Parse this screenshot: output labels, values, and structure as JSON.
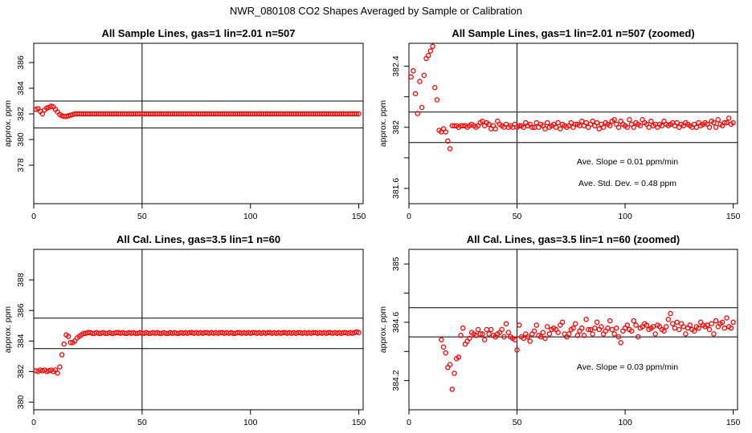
{
  "main_title": "NWR_080108  CO2 Shapes Averaged by Sample or Calibration",
  "colors": {
    "points": "#ff0000",
    "lines": "#000000"
  },
  "chart_data": [
    {
      "type": "scatter",
      "title": "All Sample Lines, gas=1 lin=2.01 n=507",
      "xlabel": "",
      "ylabel": "approx. ppm",
      "xlim": [
        0,
        152
      ],
      "ylim": [
        375,
        387.5
      ],
      "xticks": [
        0,
        50,
        100,
        150
      ],
      "yticks": [
        378,
        380,
        382,
        384,
        386
      ],
      "hlines": [
        380.9,
        383.0
      ],
      "vline": 50,
      "grid": false,
      "annotations": [],
      "x": [
        1,
        2,
        3,
        4,
        5,
        6,
        7,
        8,
        9,
        10,
        11,
        12,
        13,
        14,
        15,
        16,
        17,
        18,
        19,
        20,
        21,
        22,
        23,
        24,
        25,
        26,
        27,
        28,
        29,
        30,
        31,
        32,
        33,
        34,
        35,
        36,
        37,
        38,
        39,
        40,
        41,
        42,
        43,
        44,
        45,
        46,
        47,
        48,
        49,
        50,
        51,
        52,
        53,
        54,
        55,
        56,
        57,
        58,
        59,
        60,
        61,
        62,
        63,
        64,
        65,
        66,
        67,
        68,
        69,
        70,
        71,
        72,
        73,
        74,
        75,
        76,
        77,
        78,
        79,
        80,
        81,
        82,
        83,
        84,
        85,
        86,
        87,
        88,
        89,
        90,
        91,
        92,
        93,
        94,
        95,
        96,
        97,
        98,
        99,
        100,
        101,
        102,
        103,
        104,
        105,
        106,
        107,
        108,
        109,
        110,
        111,
        112,
        113,
        114,
        115,
        116,
        117,
        118,
        119,
        120,
        121,
        122,
        123,
        124,
        125,
        126,
        127,
        128,
        129,
        130,
        131,
        132,
        133,
        134,
        135,
        136,
        137,
        138,
        139,
        140,
        141,
        142,
        143,
        144,
        145,
        146,
        147,
        148,
        149,
        150
      ],
      "y": [
        382.35,
        382.4,
        382.2,
        382.0,
        382.3,
        382.45,
        382.5,
        382.6,
        382.55,
        382.35,
        382.15,
        381.95,
        381.85,
        381.8,
        381.8,
        381.85,
        381.9,
        381.95,
        382.0,
        382.0,
        382.0,
        382.0,
        382.0,
        382.0,
        382.0,
        382.0,
        382.0,
        382.0,
        382.0,
        382.0,
        382.0,
        382.0,
        382.0,
        382.0,
        382.0,
        382.0,
        382.0,
        382.0,
        382.0,
        382.0,
        382.0,
        382.0,
        382.0,
        382.0,
        382.0,
        382.0,
        382.0,
        382.0,
        382.0,
        382.0,
        382.0,
        382.0,
        382.0,
        382.0,
        382.0,
        382.0,
        382.0,
        382.0,
        382.0,
        382.0,
        382.0,
        382.0,
        382.0,
        382.0,
        382.0,
        382.0,
        382.0,
        382.0,
        382.0,
        382.0,
        382.0,
        382.0,
        382.0,
        382.0,
        382.0,
        382.0,
        382.0,
        382.0,
        382.0,
        382.0,
        382.0,
        382.0,
        382.0,
        382.0,
        382.0,
        382.0,
        382.0,
        382.0,
        382.0,
        382.0,
        382.0,
        382.0,
        382.0,
        382.0,
        382.0,
        382.0,
        382.0,
        382.0,
        382.0,
        382.0,
        382.0,
        382.0,
        382.0,
        382.0,
        382.0,
        382.0,
        382.0,
        382.0,
        382.0,
        382.0,
        382.0,
        382.0,
        382.0,
        382.0,
        382.0,
        382.0,
        382.0,
        382.0,
        382.0,
        382.0,
        382.0,
        382.0,
        382.0,
        382.0,
        382.0,
        382.0,
        382.0,
        382.0,
        382.0,
        382.0,
        382.0,
        382.0,
        382.0,
        382.0,
        382.0,
        382.0,
        382.0,
        382.0,
        382.0,
        382.0,
        382.0,
        382.0,
        382.0,
        382.0,
        382.0,
        382.0,
        382.0,
        382.0,
        382.0,
        382.0
      ]
    },
    {
      "type": "scatter",
      "title": "All Sample Lines, gas=1 lin=2.01 n=507 (zoomed)",
      "xlabel": "",
      "ylabel": "approx. ppm",
      "xlim": [
        0,
        152
      ],
      "ylim": [
        381.5,
        382.55
      ],
      "xticks": [
        0,
        50,
        100,
        150
      ],
      "yticks": [
        381.6,
        382.0,
        382.4
      ],
      "yticks_minor": [
        381.8,
        382.2
      ],
      "hlines": [
        381.9,
        382.1
      ],
      "vline": 50,
      "grid": false,
      "annotations": [
        {
          "label": "Ave. Slope =",
          "value": "0.01",
          "unit": "ppm/min"
        },
        {
          "label": "Ave. Std. Dev. =",
          "value": "0.48",
          "unit": "ppm"
        }
      ],
      "x": [
        1,
        2,
        3,
        4,
        5,
        6,
        7,
        8,
        9,
        10,
        11,
        12,
        13,
        14,
        15,
        16,
        17,
        18,
        19,
        20,
        21,
        22,
        23,
        24,
        25,
        26,
        27,
        28,
        29,
        30,
        31,
        32,
        33,
        34,
        35,
        36,
        37,
        38,
        39,
        40,
        41,
        42,
        43,
        44,
        45,
        46,
        47,
        48,
        49,
        50,
        51,
        52,
        53,
        54,
        55,
        56,
        57,
        58,
        59,
        60,
        61,
        62,
        63,
        64,
        65,
        66,
        67,
        68,
        69,
        70,
        71,
        72,
        73,
        74,
        75,
        76,
        77,
        78,
        79,
        80,
        81,
        82,
        83,
        84,
        85,
        86,
        87,
        88,
        89,
        90,
        91,
        92,
        93,
        94,
        95,
        96,
        97,
        98,
        99,
        100,
        101,
        102,
        103,
        104,
        105,
        106,
        107,
        108,
        109,
        110,
        111,
        112,
        113,
        114,
        115,
        116,
        117,
        118,
        119,
        120,
        121,
        122,
        123,
        124,
        125,
        126,
        127,
        128,
        129,
        130,
        131,
        132,
        133,
        134,
        135,
        136,
        137,
        138,
        139,
        140,
        141,
        142,
        143,
        144,
        145,
        146,
        147,
        148,
        149,
        150
      ],
      "y": [
        382.33,
        382.37,
        382.22,
        382.09,
        382.3,
        382.13,
        382.34,
        382.45,
        382.47,
        382.5,
        382.53,
        382.26,
        382.18,
        381.98,
        381.97,
        381.99,
        381.97,
        381.91,
        381.86,
        382.01,
        382.01,
        382.01,
        382.0,
        382.01,
        382.01,
        382.01,
        382.0,
        382.01,
        382.02,
        382.01,
        382.0,
        382.01,
        382.03,
        382.04,
        382.01,
        382.03,
        382.02,
        381.99,
        382.01,
        381.99,
        382.04,
        382.02,
        382.01,
        382.0,
        382.02,
        382.0,
        382.01,
        382.0,
        382.02,
        382.0,
        382.01,
        382.01,
        382.0,
        382.03,
        382.01,
        382.02,
        382.0,
        382.0,
        382.03,
        382.0,
        382.02,
        382.01,
        381.99,
        382.03,
        382.0,
        382.01,
        382.02,
        382.0,
        382.03,
        381.99,
        382.02,
        382.01,
        382.0,
        382.01,
        382.03,
        382.0,
        382.02,
        382.02,
        382.01,
        382.04,
        382.01,
        382.03,
        382.0,
        382.02,
        382.04,
        382.01,
        382.03,
        381.99,
        382.02,
        382.0,
        382.03,
        382.02,
        382.01,
        382.04,
        382.05,
        382.02,
        382.0,
        382.04,
        382.02,
        382.01,
        382.0,
        382.05,
        382.02,
        382.0,
        382.03,
        382.02,
        382.01,
        382.05,
        382.03,
        382.02,
        382.0,
        382.04,
        382.01,
        382.02,
        382.0,
        382.02,
        382.01,
        382.04,
        382.02,
        382.01,
        382.02,
        382.03,
        382.01,
        382.03,
        382.0,
        382.02,
        382.01,
        382.03,
        382.02,
        382.01,
        382.0,
        382.02,
        382.0,
        382.03,
        382.01,
        382.02,
        382.03,
        382.02,
        382.0,
        382.04,
        382.03,
        382.0,
        382.05,
        382.02,
        382.01,
        382.03,
        382.03,
        382.06,
        382.02,
        382.03
      ]
    },
    {
      "type": "scatter",
      "title": "All Cal. Lines, gas=3.5 lin=1 n=60",
      "xlabel": "",
      "ylabel": "approx. ppm",
      "xlim": [
        0,
        152
      ],
      "ylim": [
        379.5,
        390
      ],
      "xticks": [
        0,
        50,
        100,
        150
      ],
      "yticks": [
        380,
        382,
        384,
        386,
        388
      ],
      "hlines": [
        383.5,
        385.5
      ],
      "vline": 50,
      "grid": false,
      "annotations": [],
      "x": [
        1,
        2,
        3,
        4,
        5,
        6,
        7,
        8,
        9,
        10,
        11,
        12,
        13,
        14,
        15,
        16,
        17,
        18,
        19,
        20,
        21,
        22,
        23,
        24,
        25,
        26,
        27,
        28,
        29,
        30,
        31,
        32,
        33,
        34,
        35,
        36,
        37,
        38,
        39,
        40,
        41,
        42,
        43,
        44,
        45,
        46,
        47,
        48,
        49,
        50,
        51,
        52,
        53,
        54,
        55,
        56,
        57,
        58,
        59,
        60,
        61,
        62,
        63,
        64,
        65,
        66,
        67,
        68,
        69,
        70,
        71,
        72,
        73,
        74,
        75,
        76,
        77,
        78,
        79,
        80,
        81,
        82,
        83,
        84,
        85,
        86,
        87,
        88,
        89,
        90,
        91,
        92,
        93,
        94,
        95,
        96,
        97,
        98,
        99,
        100,
        101,
        102,
        103,
        104,
        105,
        106,
        107,
        108,
        109,
        110,
        111,
        112,
        113,
        114,
        115,
        116,
        117,
        118,
        119,
        120,
        121,
        122,
        123,
        124,
        125,
        126,
        127,
        128,
        129,
        130,
        131,
        132,
        133,
        134,
        135,
        136,
        137,
        138,
        139,
        140,
        141,
        142,
        143,
        144,
        145,
        146,
        147,
        148,
        149,
        150
      ],
      "y": [
        382.05,
        382.0,
        382.1,
        382.05,
        382.1,
        382.0,
        382.05,
        382.1,
        382.0,
        382.1,
        381.9,
        382.3,
        383.1,
        383.8,
        384.4,
        384.3,
        383.9,
        383.9,
        384.0,
        384.2,
        384.3,
        384.4,
        384.5,
        384.5,
        384.55,
        384.55,
        384.5,
        384.5,
        384.55,
        384.5,
        384.5,
        384.55,
        384.5,
        384.5,
        384.55,
        384.5,
        384.5,
        384.55,
        384.55,
        384.5,
        384.55,
        384.5,
        384.5,
        384.55,
        384.5,
        384.55,
        384.5,
        384.5,
        384.55,
        384.5,
        384.5,
        384.55,
        384.5,
        384.5,
        384.55,
        384.5,
        384.55,
        384.5,
        384.5,
        384.55,
        384.5,
        384.5,
        384.55,
        384.5,
        384.55,
        384.5,
        384.5,
        384.55,
        384.5,
        384.55,
        384.5,
        384.55,
        384.55,
        384.5,
        384.55,
        384.5,
        384.55,
        384.5,
        384.55,
        384.55,
        384.5,
        384.55,
        384.5,
        384.55,
        384.5,
        384.55,
        384.55,
        384.5,
        384.55,
        384.5,
        384.55,
        384.5,
        384.5,
        384.55,
        384.55,
        384.5,
        384.55,
        384.5,
        384.55,
        384.5,
        384.55,
        384.55,
        384.5,
        384.55,
        384.5,
        384.55,
        384.5,
        384.55,
        384.55,
        384.5,
        384.55,
        384.5,
        384.55,
        384.5,
        384.55,
        384.55,
        384.5,
        384.55,
        384.5,
        384.55,
        384.5,
        384.55,
        384.55,
        384.5,
        384.55,
        384.5,
        384.55,
        384.5,
        384.55,
        384.55,
        384.5,
        384.55,
        384.5,
        384.55,
        384.5,
        384.55,
        384.55,
        384.5,
        384.55,
        384.5,
        384.55,
        384.5,
        384.55,
        384.55,
        384.5,
        384.55,
        384.5,
        384.55,
        384.6,
        384.55
      ]
    },
    {
      "type": "scatter",
      "title": "All Cal. Lines, gas=3.5 lin=1 n=60 (zoomed)",
      "xlabel": "",
      "ylabel": "approx. ppm",
      "xlim": [
        0,
        152
      ],
      "ylim": [
        384.0,
        385.1
      ],
      "xticks": [
        0,
        50,
        100,
        150
      ],
      "yticks": [
        384.2,
        384.6,
        385.0
      ],
      "yticks_minor": [
        384.4,
        384.8
      ],
      "hlines": [
        384.5,
        384.7
      ],
      "vline": 50,
      "grid": false,
      "annotations": [
        {
          "label": "Ave. Slope =",
          "value": "0.03",
          "unit": "ppm/min"
        }
      ],
      "x": [
        15,
        16,
        17,
        18,
        19,
        20,
        21,
        22,
        23,
        24,
        25,
        26,
        27,
        28,
        29,
        30,
        31,
        32,
        33,
        34,
        35,
        36,
        37,
        38,
        39,
        40,
        41,
        42,
        43,
        44,
        45,
        46,
        47,
        48,
        49,
        50,
        51,
        52,
        53,
        54,
        55,
        56,
        57,
        58,
        59,
        60,
        61,
        62,
        63,
        64,
        65,
        66,
        67,
        68,
        69,
        70,
        71,
        72,
        73,
        74,
        75,
        76,
        77,
        78,
        79,
        80,
        81,
        82,
        83,
        84,
        85,
        86,
        87,
        88,
        89,
        90,
        91,
        92,
        93,
        94,
        95,
        96,
        97,
        98,
        99,
        100,
        101,
        102,
        103,
        104,
        105,
        106,
        107,
        108,
        109,
        110,
        111,
        112,
        113,
        114,
        115,
        116,
        117,
        118,
        119,
        120,
        121,
        122,
        123,
        124,
        125,
        126,
        127,
        128,
        129,
        130,
        131,
        132,
        133,
        134,
        135,
        136,
        137,
        138,
        139,
        140,
        141,
        142,
        143,
        144,
        145,
        146,
        147,
        148,
        149,
        150
      ],
      "y": [
        384.48,
        384.43,
        384.39,
        384.29,
        384.31,
        384.14,
        384.25,
        384.35,
        384.36,
        384.51,
        384.56,
        384.45,
        384.47,
        384.49,
        384.53,
        384.52,
        384.51,
        384.55,
        384.52,
        384.52,
        384.48,
        384.55,
        384.52,
        384.55,
        384.51,
        384.5,
        384.52,
        384.53,
        384.55,
        384.5,
        384.59,
        384.53,
        384.5,
        384.49,
        384.48,
        384.41,
        384.58,
        384.5,
        384.49,
        384.52,
        384.5,
        384.47,
        384.52,
        384.54,
        384.58,
        384.51,
        384.5,
        384.53,
        384.49,
        384.57,
        384.52,
        384.55,
        384.56,
        384.55,
        384.53,
        384.58,
        384.6,
        384.52,
        384.5,
        384.52,
        384.55,
        384.56,
        384.59,
        384.51,
        384.54,
        384.56,
        384.51,
        384.62,
        384.55,
        384.55,
        384.52,
        384.56,
        384.6,
        384.55,
        384.57,
        384.52,
        384.54,
        384.56,
        384.61,
        384.55,
        384.52,
        384.56,
        384.5,
        384.46,
        384.54,
        384.56,
        384.58,
        384.55,
        384.54,
        384.61,
        384.58,
        384.5,
        384.56,
        384.57,
        384.59,
        384.58,
        384.55,
        384.56,
        384.57,
        384.52,
        384.58,
        384.57,
        384.55,
        384.54,
        384.57,
        384.62,
        384.66,
        384.59,
        384.56,
        384.6,
        384.55,
        384.59,
        384.57,
        384.52,
        384.56,
        384.58,
        384.55,
        384.54,
        384.57,
        384.56,
        384.6,
        384.58,
        384.57,
        384.58,
        384.55,
        384.59,
        384.52,
        384.61,
        384.57,
        384.59,
        384.6,
        384.56,
        384.63,
        384.57,
        384.56,
        384.6
      ]
    }
  ]
}
